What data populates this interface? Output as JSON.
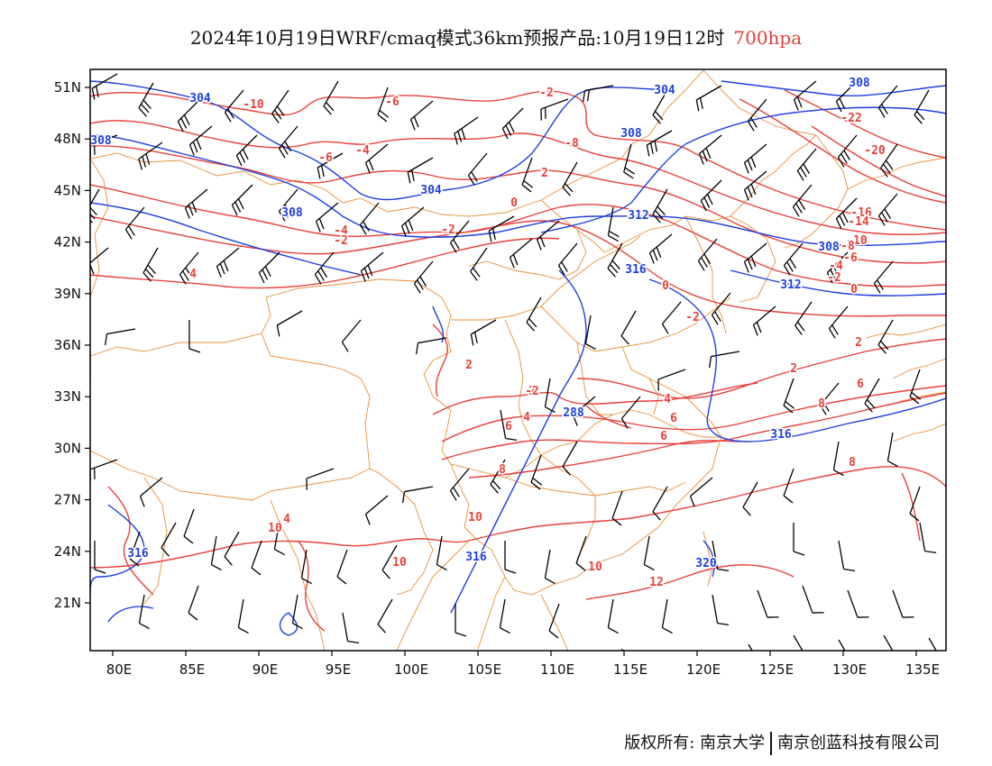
{
  "title": {
    "main": "2024年10月19日WRF/cmaq模式36km预报产品:10月19日12时",
    "level": "700hpa"
  },
  "colors": {
    "temperature": "#e8413b",
    "geopotential": "#1f3fe0",
    "boundary": "#e8903a",
    "wind": "#000000",
    "level_text": "#e0403a"
  },
  "axes": {
    "x_labels": [
      "80E",
      "85E",
      "90E",
      "95E",
      "100E",
      "105E",
      "110E",
      "115E",
      "120E",
      "125E",
      "130E",
      "135E"
    ],
    "y_labels": [
      "51N",
      "48N",
      "45N",
      "42N",
      "39N",
      "36N",
      "33N",
      "30N",
      "27N",
      "24N",
      "21N"
    ]
  },
  "contour_labels": {
    "geopotential": [
      "304",
      "304",
      "308",
      "308",
      "304",
      "308",
      "308",
      "312",
      "316",
      "312",
      "308",
      "288",
      "316",
      "316",
      "316",
      "320"
    ],
    "temperature": [
      "-10",
      "-6",
      "-6",
      "-4",
      "-8",
      "0",
      "2",
      "0",
      "-2",
      "-4",
      "-2",
      "4",
      "2",
      "0",
      "-2",
      "-22",
      "-20",
      "-16",
      "-14",
      "-10",
      "-8",
      "-4",
      "-2",
      "0",
      "2",
      "-2",
      "4",
      "6",
      "8",
      "2",
      "4",
      "6",
      "6",
      "8",
      "6",
      "8",
      "10",
      "10",
      "10",
      "10",
      "12",
      "-6",
      "-2",
      "2",
      "4"
    ]
  },
  "footer": {
    "copyright": "版权所有: 南京大学",
    "company": "南京创蓝科技有限公司"
  }
}
